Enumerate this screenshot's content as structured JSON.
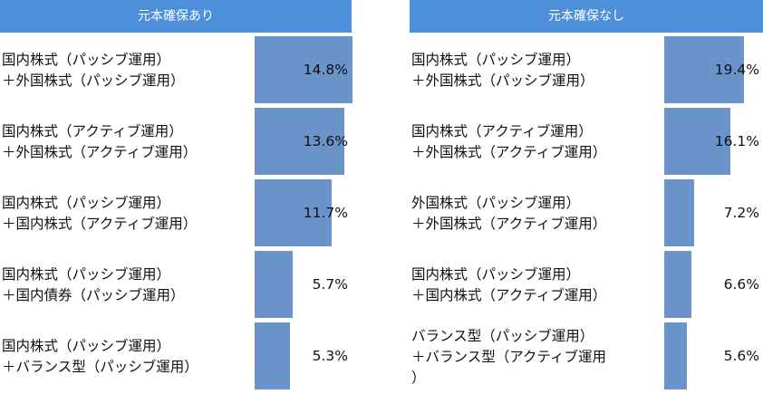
{
  "chart_data": [
    {
      "type": "bar",
      "orientation": "horizontal",
      "title": "元本確保あり",
      "categories": [
        [
          "国内株式（パッシブ運用）",
          "＋外国株式（パッシブ運用）"
        ],
        [
          "国内株式（アクティブ運用）",
          "＋外国株式（アクティブ運用）"
        ],
        [
          "国内株式（パッシブ運用）",
          "＋国内株式（アクティブ運用）"
        ],
        [
          "国内株式（パッシブ運用）",
          "＋国内債券（パッシブ運用）"
        ],
        [
          "国内株式（パッシブ運用）",
          "＋バランス型（パッシブ運用）"
        ]
      ],
      "values": [
        14.8,
        13.6,
        11.7,
        5.7,
        5.3
      ],
      "value_labels": [
        "14.8%",
        "13.6%",
        "11.7%",
        "5.7%",
        "5.3%"
      ],
      "header_color": "#4e8fd9",
      "bar_color": "#6a93c9"
    },
    {
      "type": "bar",
      "orientation": "horizontal",
      "title": "元本確保なし",
      "categories": [
        [
          "国内株式（パッシブ運用）",
          "＋外国株式（パッシブ運用）"
        ],
        [
          "国内株式（アクティブ運用）",
          "＋外国株式（アクティブ運用）"
        ],
        [
          "外国株式（パッシブ運用）",
          "＋外国株式（アクティブ運用）"
        ],
        [
          "国内株式（パッシブ運用）",
          "＋国内株式（アクティブ運用）"
        ],
        [
          "バランス型（パッシブ運用）",
          "＋バランス型（アクティブ運用",
          "）"
        ]
      ],
      "values": [
        19.4,
        16.1,
        7.2,
        6.6,
        5.6
      ],
      "value_labels": [
        "19.4%",
        "16.1%",
        "7.2%",
        "6.6%",
        "5.6%"
      ],
      "header_color": "#4e8fd9",
      "bar_color": "#6a93c9"
    }
  ]
}
